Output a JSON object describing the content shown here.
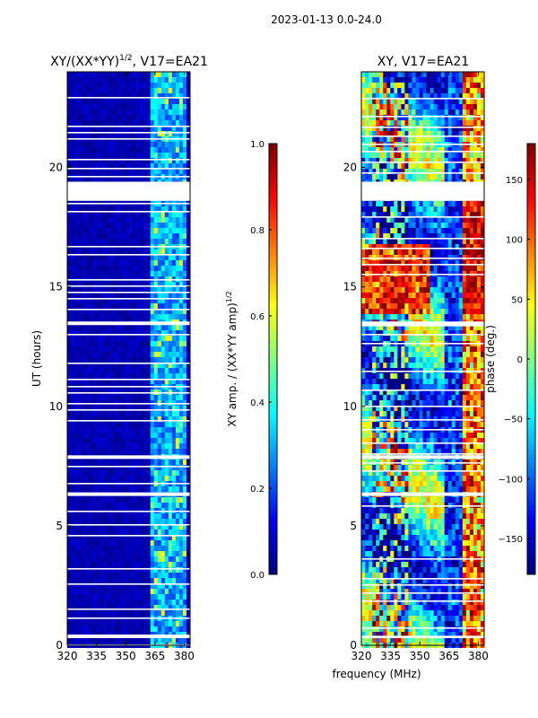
{
  "suptitle": "2023-01-13 0.0-24.0",
  "colors": {
    "white": "#ffffff",
    "black": "#000000",
    "jet": [
      "#00007f",
      "#0000ff",
      "#007fff",
      "#00ffff",
      "#7fff7f",
      "#ffff00",
      "#ff7f00",
      "#ff0000",
      "#7f0000"
    ]
  },
  "chart_data": [
    {
      "type": "heatmap",
      "title_main": "XY/(XX*YY)",
      "title_sup": "1/2",
      "title_tail": ", V17=EA21",
      "xlabel": "",
      "ylabel": "UT (hours)",
      "xlim": [
        320,
        383
      ],
      "ylim": [
        0,
        24
      ],
      "xticks": [
        320,
        335,
        350,
        365,
        380
      ],
      "yticks": [
        0,
        5,
        10,
        15,
        20
      ],
      "colorbar": {
        "label_main": "XY amp. / (XX*YY amp)",
        "label_sup": "1/2",
        "range": [
          0.0,
          1.0
        ],
        "ticks": [
          0.0,
          0.2,
          0.4,
          0.6,
          0.8,
          1.0
        ],
        "tick_labels": [
          "0.0",
          "0.2",
          "0.4",
          "0.6",
          "0.8",
          "1.0"
        ]
      },
      "flagged_utc_ranges": [
        [
          18.6,
          19.4
        ],
        [
          13.4,
          13.55
        ],
        [
          7.8,
          7.95
        ],
        [
          6.25,
          6.4
        ],
        [
          0.3,
          0.4
        ]
      ],
      "band_bright_freq_mhz": [
        363,
        381
      ]
    },
    {
      "type": "heatmap",
      "title_main": "XY, V17=EA21",
      "title_sup": "",
      "title_tail": "",
      "xlabel": "frequency (MHz)",
      "ylabel": "",
      "xlim": [
        320,
        383
      ],
      "ylim": [
        0,
        24
      ],
      "xticks": [
        320,
        335,
        350,
        365,
        380
      ],
      "yticks": [
        0,
        5,
        10,
        15,
        20
      ],
      "colorbar": {
        "label_main": "phase (deg.)",
        "label_sup": "",
        "range": [
          -180,
          180
        ],
        "ticks": [
          -150,
          -100,
          -50,
          0,
          50,
          100,
          150
        ],
        "tick_labels": [
          "−150",
          "−100",
          "−50",
          "0",
          "50",
          "100",
          "150"
        ]
      },
      "flagged_utc_ranges": [
        [
          18.6,
          19.4
        ],
        [
          13.4,
          13.55
        ],
        [
          7.8,
          7.95
        ],
        [
          6.25,
          6.4
        ],
        [
          0.3,
          0.4
        ]
      ]
    }
  ]
}
